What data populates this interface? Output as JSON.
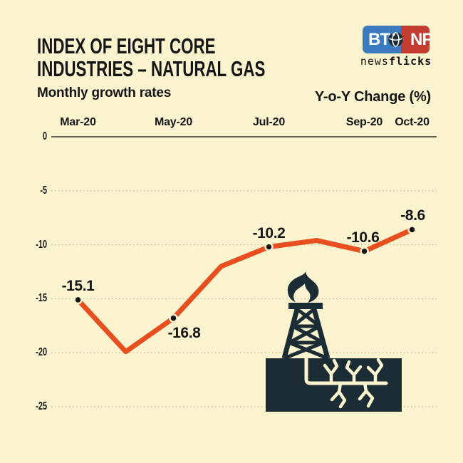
{
  "colors": {
    "background": "#FCF4CF",
    "accent_line": "#E94E1E",
    "ink": "#151515",
    "grid": "#C0B896",
    "zero_axis": "#33322B",
    "illustration": "#1B2C35",
    "logo_blue": "#3B7ABE",
    "logo_red": "#C43C30"
  },
  "header": {
    "title_line1": "INDEX OF EIGHT CORE",
    "title_line2": "INDUSTRIES – NATURAL GAS",
    "subtitle": "Monthly growth rates",
    "unit_label": "Y-o-Y Change (%)"
  },
  "logo": {
    "left": "BT",
    "right": "NF",
    "tagline_regular": "news",
    "tagline_bold": "flicks"
  },
  "chart_data": {
    "type": "line",
    "title": "INDEX OF EIGHT CORE INDUSTRIES – NATURAL GAS",
    "subtitle": "Monthly growth rates",
    "ylabel": "Y-o-Y Change (%)",
    "x": [
      "Mar-20",
      "Apr-20",
      "May-20",
      "Jun-20",
      "Jul-20",
      "Aug-20",
      "Sep-20",
      "Oct-20"
    ],
    "values": [
      -15.1,
      -19.9,
      -16.8,
      -12.0,
      -10.2,
      -9.6,
      -10.6,
      -8.6
    ],
    "labeled_points": [
      {
        "x": "Mar-20",
        "value": -15.1,
        "label": "-15.1",
        "label_side": "above"
      },
      {
        "x": "May-20",
        "value": -16.8,
        "label": "-16.8",
        "label_side": "below"
      },
      {
        "x": "Jul-20",
        "value": -10.2,
        "label": "-10.2",
        "label_side": "above"
      },
      {
        "x": "Sep-20",
        "value": -10.6,
        "label": "-10.6",
        "label_side": "above"
      },
      {
        "x": "Oct-20",
        "value": -8.6,
        "label": "-8.6",
        "label_side": "above"
      }
    ],
    "estimated_unlabeled_values": {
      "Apr-20": -19.9,
      "Jun-20": -12.0,
      "Aug-20": -9.6
    },
    "x_tick_labels": [
      "Mar-20",
      "May-20",
      "Jul-20",
      "Sep-20",
      "Oct-20"
    ],
    "y_ticks": [
      0,
      -5,
      -10,
      -15,
      -20,
      -25
    ],
    "ylim": [
      -25,
      0
    ],
    "grid": "horizontal-dotted",
    "legend": "none",
    "line_color": "#E94E1E",
    "marker_color": "#151515"
  }
}
